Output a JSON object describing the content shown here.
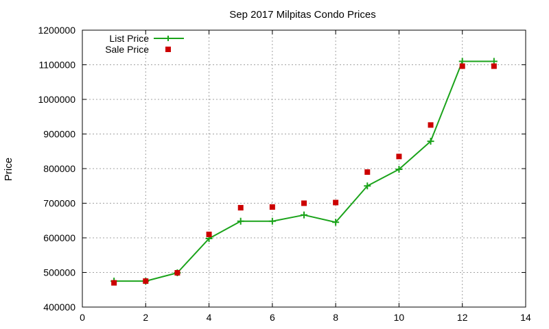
{
  "chart_data": {
    "type": "line",
    "title": "Sep 2017 Milpitas Condo Prices",
    "xlabel": "",
    "ylabel": "Price",
    "xlim": [
      0,
      14
    ],
    "ylim": [
      400000,
      1200000
    ],
    "xticks": [
      0,
      2,
      4,
      6,
      8,
      10,
      12,
      14
    ],
    "yticks": [
      400000,
      500000,
      600000,
      700000,
      800000,
      900000,
      1000000,
      1100000,
      1200000
    ],
    "grid": true,
    "legend_position": "top-left",
    "series": [
      {
        "name": "List Price",
        "style": "line-points",
        "marker": "plus",
        "color": "#1aa31a",
        "x": [
          1,
          2,
          3,
          4,
          5,
          6,
          7,
          8,
          9,
          10,
          11,
          12,
          13
        ],
        "y": [
          475000,
          475000,
          499000,
          598000,
          648000,
          648000,
          666000,
          645000,
          750000,
          798000,
          879000,
          1110000,
          1110000
        ]
      },
      {
        "name": "Sale Price",
        "style": "points",
        "marker": "square",
        "color": "#cc0000",
        "x": [
          1,
          2,
          3,
          4,
          5,
          6,
          7,
          8,
          9,
          10,
          11,
          12,
          13
        ],
        "y": [
          470000,
          475000,
          499000,
          610000,
          687000,
          689000,
          700000,
          702000,
          790000,
          835000,
          926000,
          1096000,
          1096000
        ]
      }
    ]
  }
}
